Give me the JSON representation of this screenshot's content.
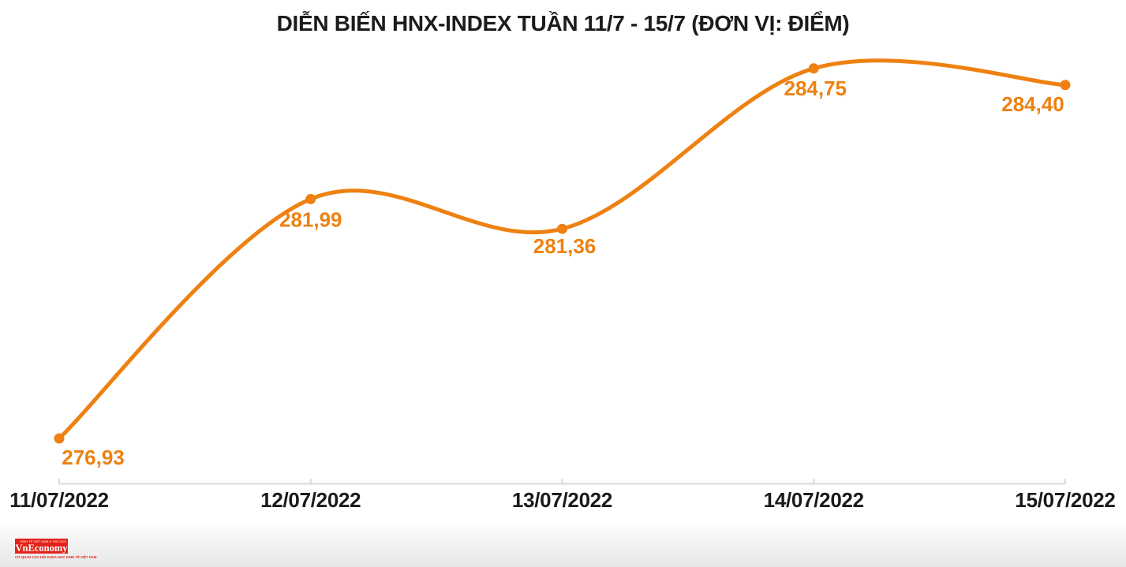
{
  "title": "DIỄN BIẾN HNX-INDEX TUẦN 11/7 - 15/7 (ĐƠN VỊ: ĐIỂM)",
  "chart_data": {
    "type": "line",
    "title": "DIỄN BIẾN HNX-INDEX TUẦN 11/7 - 15/7 (ĐƠN VỊ: ĐIỂM)",
    "unit": "ĐIỂM",
    "x": [
      "11/07/2022",
      "12/07/2022",
      "13/07/2022",
      "14/07/2022",
      "15/07/2022"
    ],
    "values": [
      276.93,
      281.99,
      281.36,
      284.75,
      284.4
    ],
    "point_labels": [
      "276,93",
      "281,99",
      "281,36",
      "284,75",
      "284,40"
    ],
    "series_name": "HNX-INDEX",
    "line_smooth": true,
    "grid": false,
    "legend_position": "none",
    "ylim": [
      276.0,
      286.2
    ],
    "xlabel": "",
    "ylabel": ""
  },
  "colors": {
    "series": "#ee8111",
    "title_text": "#1c1c1c",
    "axis_label_text": "#1a1a1a",
    "axis_line": "#d9d9d9",
    "logo_red": "#e2231a"
  },
  "logo": {
    "small_text": "KINH TẾ VIỆT NAM & THẾ GIỚI",
    "wordmark": "VnEconomy",
    "tagline": "CƠ QUAN CỦA HỘI KHOA HỌC KINH TẾ VIỆT NAM"
  }
}
